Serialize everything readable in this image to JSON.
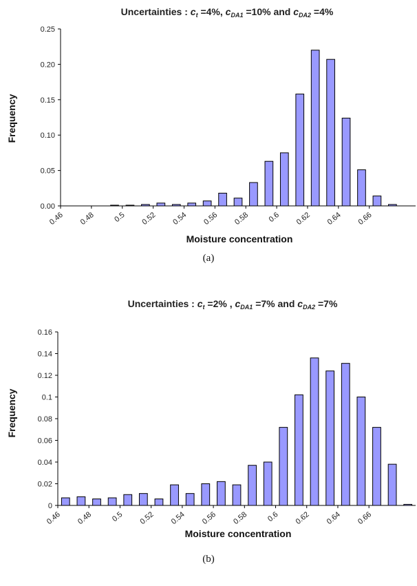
{
  "chart_data": [
    {
      "type": "bar",
      "title": {
        "prefix": "Uncertainties : ",
        "c1_letter": "c",
        "c1_sub": "t",
        "c1_value": " =4%,  ",
        "c2_letter": "c",
        "c2_sub": "DA1",
        "c2_value": " =10%  and  ",
        "c3_letter": "c",
        "c3_sub": "DA2",
        "c3_value": " =4%"
      },
      "xlabel": "Moisture concentration",
      "ylabel": "Frequency",
      "caption": "(a)",
      "bar_color": "#9999ff",
      "ylim": [
        0,
        0.25
      ],
      "yticks": [
        "0.00",
        "0.05",
        "0.10",
        "0.15",
        "0.20",
        "0.25"
      ],
      "xlim": [
        0.46,
        0.68
      ],
      "xticks": [
        "0.46",
        "0.48",
        "0.5",
        "0.52",
        "0.54",
        "0.56",
        "0.58",
        "0.6",
        "0.62",
        "0.64",
        "0.66"
      ],
      "x": [
        0.47,
        0.48,
        0.49,
        0.5,
        0.51,
        0.52,
        0.53,
        0.54,
        0.55,
        0.56,
        0.57,
        0.58,
        0.59,
        0.6,
        0.61,
        0.62,
        0.63,
        0.64,
        0.65,
        0.66,
        0.67,
        0.68
      ],
      "values": [
        0,
        0,
        0.001,
        0.001,
        0.002,
        0.004,
        0.002,
        0.004,
        0.007,
        0.018,
        0.011,
        0.033,
        0.063,
        0.075,
        0.158,
        0.22,
        0.207,
        0.124,
        0.051,
        0.014,
        0.002,
        0
      ]
    },
    {
      "type": "bar",
      "title": {
        "prefix": "Uncertainties : ",
        "c1_letter": "c",
        "c1_sub": "t",
        "c1_value": " =2% ,  ",
        "c2_letter": "c",
        "c2_sub": "DA1",
        "c2_value": " =7%  and  ",
        "c3_letter": "c",
        "c3_sub": "DA2",
        "c3_value": " =7%"
      },
      "xlabel": "Moisture concentration",
      "ylabel": "Frequency",
      "caption": "(b)",
      "bar_color": "#9999ff",
      "ylim": [
        0,
        0.16
      ],
      "yticks": [
        "0",
        "0.02",
        "0.04",
        "0.06",
        "0.08",
        "0.1",
        "0.12",
        "0.14",
        "0.16"
      ],
      "xlim": [
        0.46,
        0.68
      ],
      "xticks": [
        "0.46",
        "0.48",
        "0.5",
        "0.52",
        "0.54",
        "0.56",
        "0.58",
        "0.6",
        "0.62",
        "0.64",
        "0.66"
      ],
      "x": [
        0.46,
        0.47,
        0.48,
        0.49,
        0.5,
        0.51,
        0.52,
        0.53,
        0.54,
        0.55,
        0.56,
        0.57,
        0.58,
        0.59,
        0.6,
        0.61,
        0.62,
        0.63,
        0.64,
        0.65,
        0.66,
        0.67,
        0.68
      ],
      "values": [
        0.007,
        0.008,
        0.006,
        0.007,
        0.01,
        0.011,
        0.006,
        0.019,
        0.011,
        0.02,
        0.022,
        0.019,
        0.037,
        0.04,
        0.072,
        0.102,
        0.136,
        0.124,
        0.131,
        0.1,
        0.072,
        0.038,
        0.001
      ]
    }
  ]
}
